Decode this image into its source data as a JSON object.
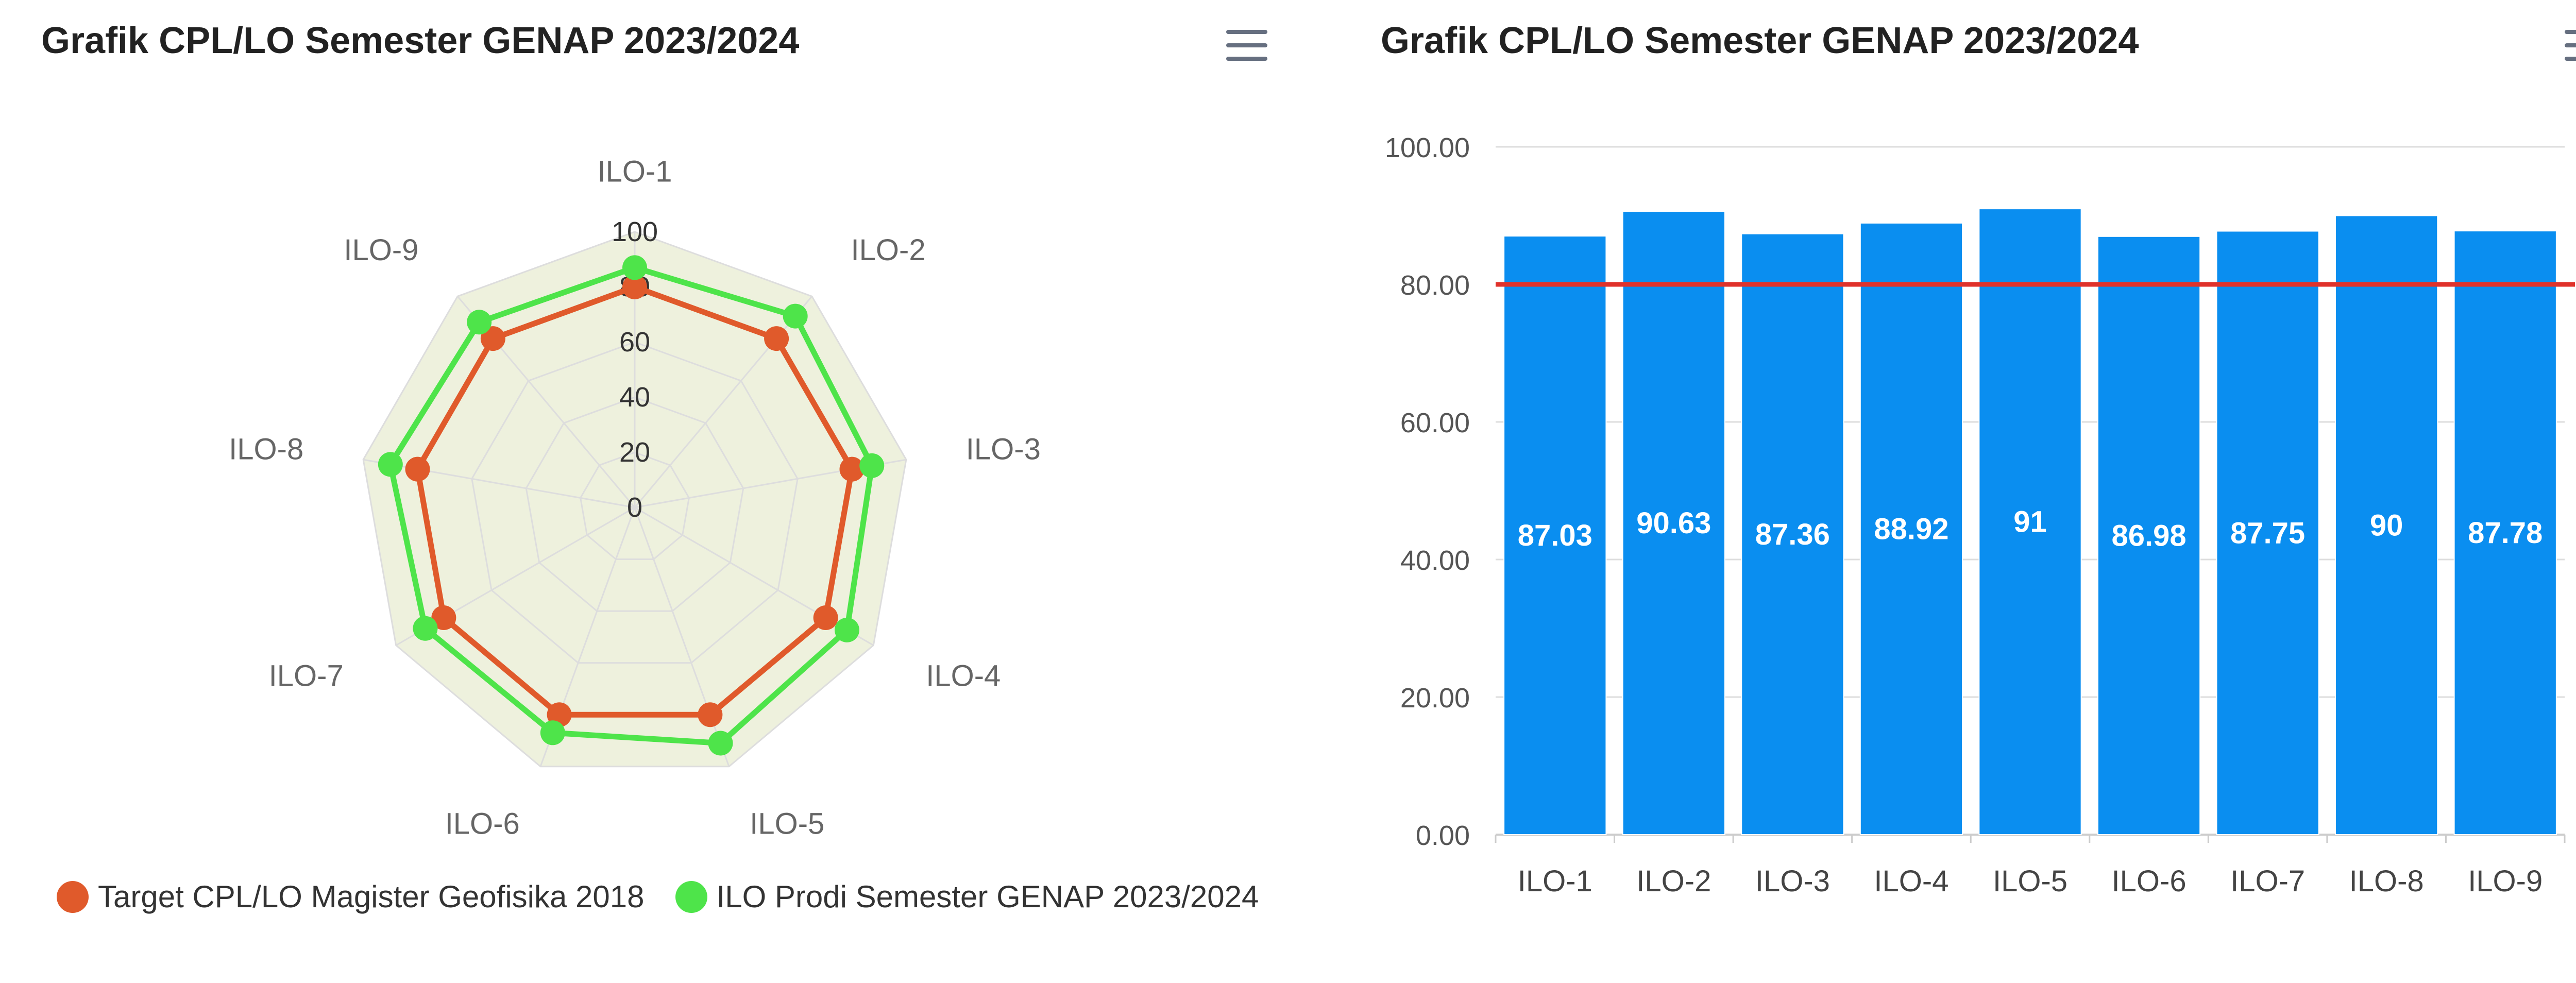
{
  "colors": {
    "target": "#e05a2b",
    "actual": "#4ee44a",
    "bar": "#0a8ef0",
    "threshold": "#e0322b",
    "grid": "#dddddd",
    "radar_fill": "#eef1dd"
  },
  "menu_icon": "hamburger-icon",
  "chart_data": [
    {
      "type": "radar",
      "title": "Grafik CPL/LO Semester GENAP 2023/2024",
      "categories": [
        "ILO-1",
        "ILO-2",
        "ILO-3",
        "ILO-4",
        "ILO-5",
        "ILO-6",
        "ILO-7",
        "ILO-8",
        "ILO-9"
      ],
      "radial_ticks": [
        "0",
        "20",
        "40",
        "60",
        "80",
        "100"
      ],
      "range": [
        0,
        100
      ],
      "legend_position": "bottom-left",
      "series": [
        {
          "name": "Target CPL/LO Magister Geofisika 2018",
          "values": [
            80,
            80,
            80,
            80,
            80,
            80,
            80,
            80,
            80
          ]
        },
        {
          "name": "ILO Prodi Semester GENAP 2023/2024",
          "values": [
            87.03,
            90.63,
            87.36,
            88.92,
            91,
            86.98,
            87.75,
            90,
            87.78
          ]
        }
      ]
    },
    {
      "type": "bar",
      "title": "Grafik CPL/LO Semester GENAP 2023/2024",
      "categories": [
        "ILO-1",
        "ILO-2",
        "ILO-3",
        "ILO-4",
        "ILO-5",
        "ILO-6",
        "ILO-7",
        "ILO-8",
        "ILO-9"
      ],
      "values": [
        87.03,
        90.63,
        87.36,
        88.92,
        91,
        86.98,
        87.75,
        90,
        87.78
      ],
      "data_labels": [
        "87.03",
        "90.63",
        "87.36",
        "88.92",
        "91",
        "86.98",
        "87.75",
        "90",
        "87.78"
      ],
      "y_ticks": [
        "0.00",
        "20.00",
        "40.00",
        "60.00",
        "80.00",
        "100.00"
      ],
      "ylim": [
        0,
        100
      ],
      "threshold": 80,
      "grid": true
    }
  ]
}
